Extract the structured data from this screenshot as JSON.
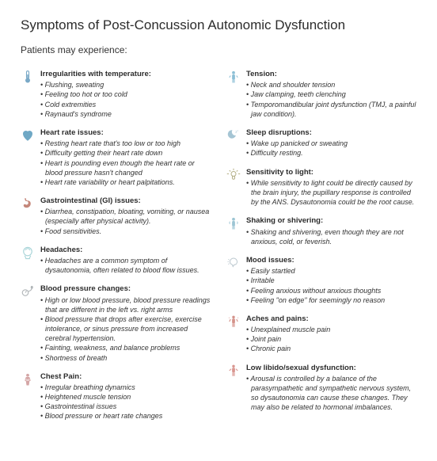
{
  "title": "Symptoms of Post-Concussion Autonomic Dysfunction",
  "subtitle": "Patients may experience:",
  "icon_colors": {
    "blue": "#7aa9c7",
    "heart": "#6fa8c5",
    "gi": "#c4877a",
    "head": "#a8d4d8",
    "bp": "#b0b5b8",
    "chest": "#d4a5a5",
    "tension": "#8cbfd6",
    "sleep": "#a5c5d4",
    "light": "#b5b087",
    "shake": "#9cc5d4",
    "mood": "#b8c5cc",
    "aches": "#d4928a",
    "libido": "#d99690"
  },
  "left": [
    {
      "icon": "thermometer",
      "heading": "Irregularities with temperature:",
      "items": [
        "Flushing, sweating",
        "Feeling too hot or too cold",
        "Cold extremities",
        "Raynaud's syndrome"
      ]
    },
    {
      "icon": "heart",
      "heading": "Heart rate issues:",
      "items": [
        "Resting heart rate that's too low or too high",
        "Difficulty getting their heart rate down",
        "Heart is pounding even though the heart rate or blood pressure hasn't changed",
        "Heart rate variability or heart palpitations."
      ]
    },
    {
      "icon": "stomach",
      "heading": "Gastrointestinal (GI) issues:",
      "items": [
        "Diarrhea, constipation, bloating, vomiting, or nausea (especially after physical activity).",
        "Food sensitivities."
      ]
    },
    {
      "icon": "head",
      "heading": "Headaches:",
      "items": [
        "Headaches are a common symptom of dysautonomia, often related to blood flow issues."
      ]
    },
    {
      "icon": "bp",
      "heading": "Blood pressure changes:",
      "items": [
        "High or low blood pressure, blood pressure readings that are different in the left vs. right arms",
        "Blood pressure that drops after exercise, exercise intolerance, or sinus pressure from increased cerebral hypertension.",
        "Fainting, weakness, and balance problems",
        "Shortness of breath"
      ]
    },
    {
      "icon": "chest",
      "heading": "Chest Pain:",
      "items": [
        "Irregular breathing dynamics",
        "Heightened muscle tension",
        "Gastrointestinal issues",
        "Blood pressure or heart rate changes"
      ]
    }
  ],
  "right": [
    {
      "icon": "tension",
      "heading": "Tension:",
      "items": [
        "Neck and shoulder tension",
        "Jaw clamping, teeth clenching",
        "Temporomandibular joint dysfunction (TMJ, a painful jaw condition)."
      ]
    },
    {
      "icon": "sleep",
      "heading": "Sleep disruptions:",
      "items": [
        "Wake up panicked or sweating",
        "Difficulty resting."
      ]
    },
    {
      "icon": "light",
      "heading": "Sensitivity to light:",
      "items": [
        "While sensitivity to light could be directly caused by the brain injury, the pupillary response is controlled by the ANS. Dysautonomia could be the root cause."
      ]
    },
    {
      "icon": "shake",
      "heading": "Shaking or shivering:",
      "items": [
        "Shaking and shivering, even though they are not anxious, cold, or feverish."
      ]
    },
    {
      "icon": "mood",
      "heading": "Mood issues:",
      "items": [
        "Easily startled",
        "Irritable",
        "Feeling anxious without anxious thoughts",
        "Feeling \"on edge\" for seemingly no reason"
      ]
    },
    {
      "icon": "aches",
      "heading": "Aches and pains:",
      "items": [
        "Unexplained muscle pain",
        "Joint pain",
        "Chronic pain"
      ]
    },
    {
      "icon": "libido",
      "heading": "Low libido/sexual dysfunction:",
      "items": [
        "Arousal is controlled by a balance of the parasympathetic and sympathetic nervous system, so dysautonomia can cause these changes. They may also be related to hormonal imbalances."
      ]
    }
  ]
}
